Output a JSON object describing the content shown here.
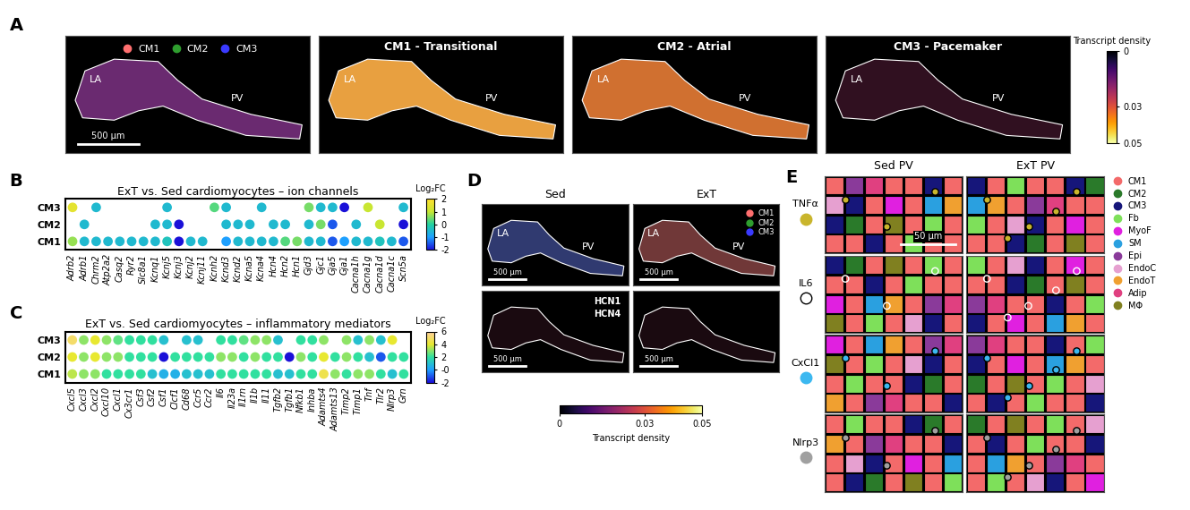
{
  "chart_data": [
    {
      "type": "image",
      "label": "A",
      "series": [
        {
          "name": "CM1",
          "color": "#ff6f6f"
        },
        {
          "name": "CM2",
          "color": "#2f9e2f"
        },
        {
          "name": "CM3",
          "color": "#3a3aff"
        }
      ],
      "titles": [
        "CM1 - Transitional",
        "CM2 - Atrial",
        "CM3 - Pacemaker"
      ],
      "regions": [
        "LA",
        "PV"
      ],
      "scale_bar": "500 µm",
      "colorbar": {
        "label": "Transcript density",
        "range": [
          0,
          0.05
        ],
        "ticks": [
          0,
          0.03,
          0.05
        ]
      }
    },
    {
      "type": "dot_heatmap",
      "label": "B",
      "title": "ExT vs. Sed cardiomyocytes – ion channels",
      "rows": [
        "CM3",
        "CM2",
        "CM1"
      ],
      "categories": [
        "Adrb2",
        "Adrb1",
        "Chrm2",
        "Atp2a2",
        "Casq2",
        "Ryr2",
        "Slc8a1",
        "Kcnq1",
        "Kcnj5",
        "Kcnj3",
        "Kcnj2",
        "Kcnj11",
        "Kcnh2",
        "Kcnd3",
        "Kcnd2",
        "Kcna5",
        "Kcna4",
        "Hcn4",
        "Hcn2",
        "Hcn1",
        "Gjd3",
        "Gjc1",
        "Gja5",
        "Gja1",
        "Cacna1h",
        "Cacna1g",
        "Cacna1d",
        "Cacna1c",
        "Scn5a"
      ],
      "values": [
        [
          1.5,
          null,
          -0.5,
          null,
          null,
          null,
          null,
          null,
          -0.5,
          null,
          null,
          null,
          0.3,
          -0.5,
          null,
          null,
          -0.5,
          null,
          null,
          null,
          0.5,
          -0.5,
          -0.5,
          -2,
          null,
          1.0,
          null,
          null,
          -0.5
        ],
        [
          null,
          -0.5,
          null,
          null,
          null,
          null,
          null,
          -0.5,
          -0.5,
          -2,
          null,
          null,
          null,
          -0.5,
          -0.5,
          -0.5,
          null,
          -0.5,
          -0.5,
          null,
          -0.5,
          0.5,
          -1.5,
          null,
          -0.5,
          null,
          1.0,
          null,
          -2
        ],
        [
          0.7,
          -0.5,
          -0.5,
          -0.5,
          -0.5,
          -0.5,
          -0.5,
          -0.5,
          -0.3,
          -2,
          -0.5,
          -0.5,
          null,
          -1,
          -0.5,
          -0.5,
          -0.5,
          -0.5,
          0.3,
          0.5,
          -0.5,
          -0.5,
          -1.5,
          -1,
          -0.5,
          -0.5,
          -0.3,
          -0.5,
          -1.5
        ]
      ],
      "colorbar": {
        "label": "Log₂FC",
        "range": [
          -2,
          2
        ],
        "ticks": [
          2,
          1,
          0,
          -1,
          -2
        ]
      }
    },
    {
      "type": "dot_heatmap",
      "label": "C",
      "title": "ExT vs. Sed cardiomyocytes – inflammatory mediators",
      "rows": [
        "CM3",
        "CM2",
        "CM1"
      ],
      "categories": [
        "Cxcl5",
        "Cxcl3",
        "Cxcl2",
        "Cxcl10",
        "Cxcl1",
        "Cx3cr1",
        "Csf3",
        "Csf2",
        "Csf1",
        "Clcf1",
        "Cd68",
        "Ccr5",
        "Ccr2",
        "Il6",
        "Il23a",
        "Il1rn",
        "Il1b",
        "Il11",
        "Tgfb2",
        "Tgfb1",
        "Nfkb1",
        "Inhba",
        "Adamts4",
        "Adamts13",
        "Timp2",
        "Timp1",
        "Tnf",
        "Tlr2",
        "Nlrp3",
        "Grn"
      ],
      "values": [
        [
          5,
          3,
          4,
          3,
          2.5,
          2,
          2,
          2,
          1,
          null,
          1,
          1,
          null,
          2,
          2,
          2.5,
          3,
          3,
          1,
          null,
          2,
          2,
          3,
          null,
          3,
          1,
          3,
          1,
          4,
          null
        ],
        [
          4,
          3,
          4,
          3,
          3,
          2,
          2,
          2,
          -2,
          2,
          2,
          2,
          2,
          3,
          3,
          2,
          3,
          2,
          2,
          -2,
          3,
          2,
          4,
          2,
          3,
          2,
          1,
          -1,
          2,
          2
        ],
        [
          3.5,
          3,
          3,
          2,
          2,
          2,
          2,
          1,
          0.5,
          0.5,
          1,
          1,
          1,
          2,
          2,
          2,
          2,
          2,
          1,
          1,
          2,
          2,
          4.5,
          3,
          2,
          3,
          3,
          2,
          1,
          2
        ]
      ],
      "colorbar": {
        "label": "Log₂FC",
        "range": [
          -2,
          6
        ],
        "ticks": [
          6,
          4,
          2,
          {
            "value": 0,
            "label": "-0"
          },
          -2
        ]
      }
    },
    {
      "type": "image",
      "label": "D",
      "columns": [
        "Sed",
        "ExT"
      ],
      "regions": [
        "LA",
        "PV"
      ],
      "series": [
        {
          "name": "CM1",
          "color": "#ff6f6f"
        },
        {
          "name": "CM2",
          "color": "#2f9e2f"
        },
        {
          "name": "CM3",
          "color": "#3a3aff"
        }
      ],
      "markers": [
        "HCN1",
        "HCN4"
      ],
      "scale_bar": "500 µm",
      "colorbar": {
        "label": "Transcript density",
        "range": [
          0,
          0.05
        ],
        "ticks": [
          0,
          0.03,
          0.05
        ]
      }
    },
    {
      "type": "image",
      "label": "E",
      "columns": [
        "Sed PV",
        "ExT PV"
      ],
      "rows": [
        {
          "name": "TNFα",
          "color": "#c9b52c",
          "marker": "circle"
        },
        {
          "name": "IL6",
          "color": "#ffffff",
          "marker": "open_circle"
        },
        {
          "name": "CxCl1",
          "color": "#3cb8f0",
          "marker": "circle"
        },
        {
          "name": "Nlrp3",
          "color": "#a0a0a0",
          "marker": "circle"
        }
      ],
      "series": [
        {
          "name": "CM1",
          "color": "#f36a6a"
        },
        {
          "name": "CM2",
          "color": "#2a7a2a"
        },
        {
          "name": "CM3",
          "color": "#16167a"
        },
        {
          "name": "Fb",
          "color": "#7ee05a"
        },
        {
          "name": "MyoF",
          "color": "#e020e0"
        },
        {
          "name": "SM",
          "color": "#2aa0e0"
        },
        {
          "name": "Epi",
          "color": "#8a3a9a"
        },
        {
          "name": "EndoC",
          "color": "#e6a0d0"
        },
        {
          "name": "EndoT",
          "color": "#f0a030"
        },
        {
          "name": "Adip",
          "color": "#e04080"
        },
        {
          "name": "MΦ",
          "color": "#808020"
        }
      ],
      "scale_bar": "50 µm"
    }
  ]
}
